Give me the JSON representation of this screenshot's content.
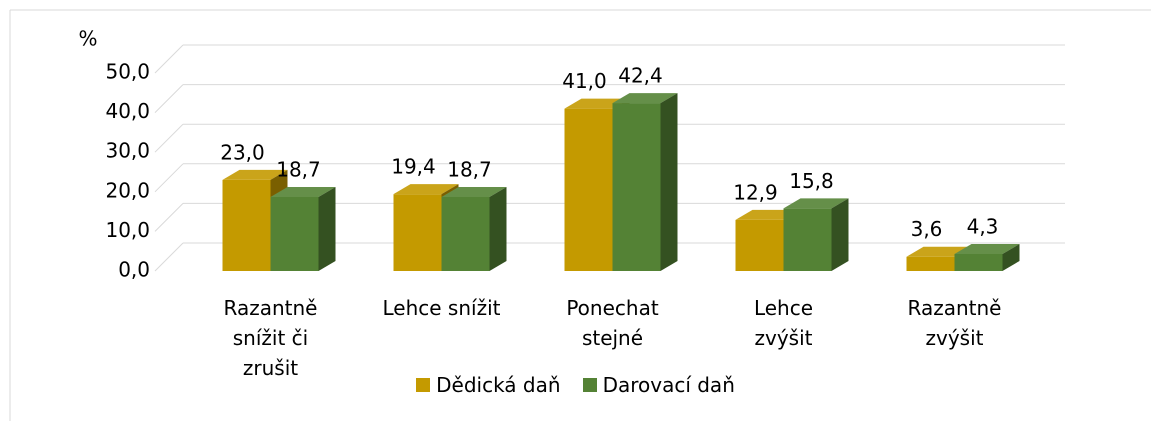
{
  "chart_data": {
    "type": "bar3d",
    "ylabel": "%",
    "categories": [
      "Razantně snížit či zrušit",
      "Lehce snížit",
      "Ponechat stejné",
      "Lehce zvýšit",
      "Razantně zvýšit"
    ],
    "series": [
      {
        "name": "Dědická daň",
        "color": "#c49a00",
        "values": [
          23.0,
          19.4,
          41.0,
          12.9,
          3.6
        ],
        "value_labels": [
          "23,0",
          "19,4",
          "41,0",
          "12,9",
          "3,6"
        ]
      },
      {
        "name": "Darovací daň",
        "color": "#548235",
        "values": [
          18.7,
          18.7,
          42.4,
          15.8,
          4.3
        ],
        "value_labels": [
          "18,7",
          "18,7",
          "42,4",
          "15,8",
          "4,3"
        ]
      }
    ],
    "ylim": [
      0,
      50
    ],
    "yticks": [
      {
        "value": 0,
        "label": "0,0"
      },
      {
        "value": 10,
        "label": "10,0"
      },
      {
        "value": 20,
        "label": "20,0"
      },
      {
        "value": 30,
        "label": "30,0"
      },
      {
        "value": 40,
        "label": "40,0"
      },
      {
        "value": 50,
        "label": "50,0"
      }
    ],
    "grid": true,
    "legend": "bottom"
  }
}
